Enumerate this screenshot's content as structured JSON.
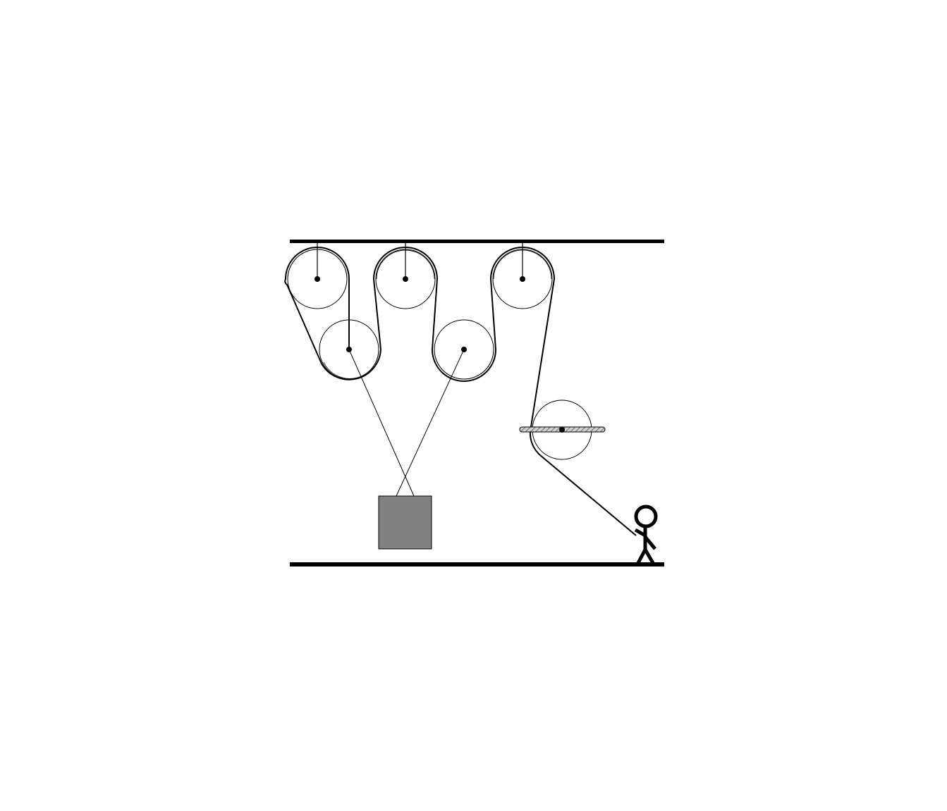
{
  "diagram": {
    "description_visible_text": "",
    "colors": {
      "background": "#ffffff",
      "line": "#000000",
      "pulley_outline": "#000000",
      "block_fill": "#808080",
      "block_stroke": "#000000",
      "hatch_bar_fill": "#aaaaaa"
    },
    "elements": {
      "ceiling": "ceiling-beam",
      "floor": "floor-beam",
      "fixed_pulleys": [
        "fixed-pulley-1",
        "fixed-pulley-2",
        "fixed-pulley-3"
      ],
      "movable_pulleys": [
        "movable-pulley-1",
        "movable-pulley-2"
      ],
      "guide_pulley": "guide-pulley-on-bar",
      "load": "load-block",
      "person": "stick-figure-person"
    }
  }
}
